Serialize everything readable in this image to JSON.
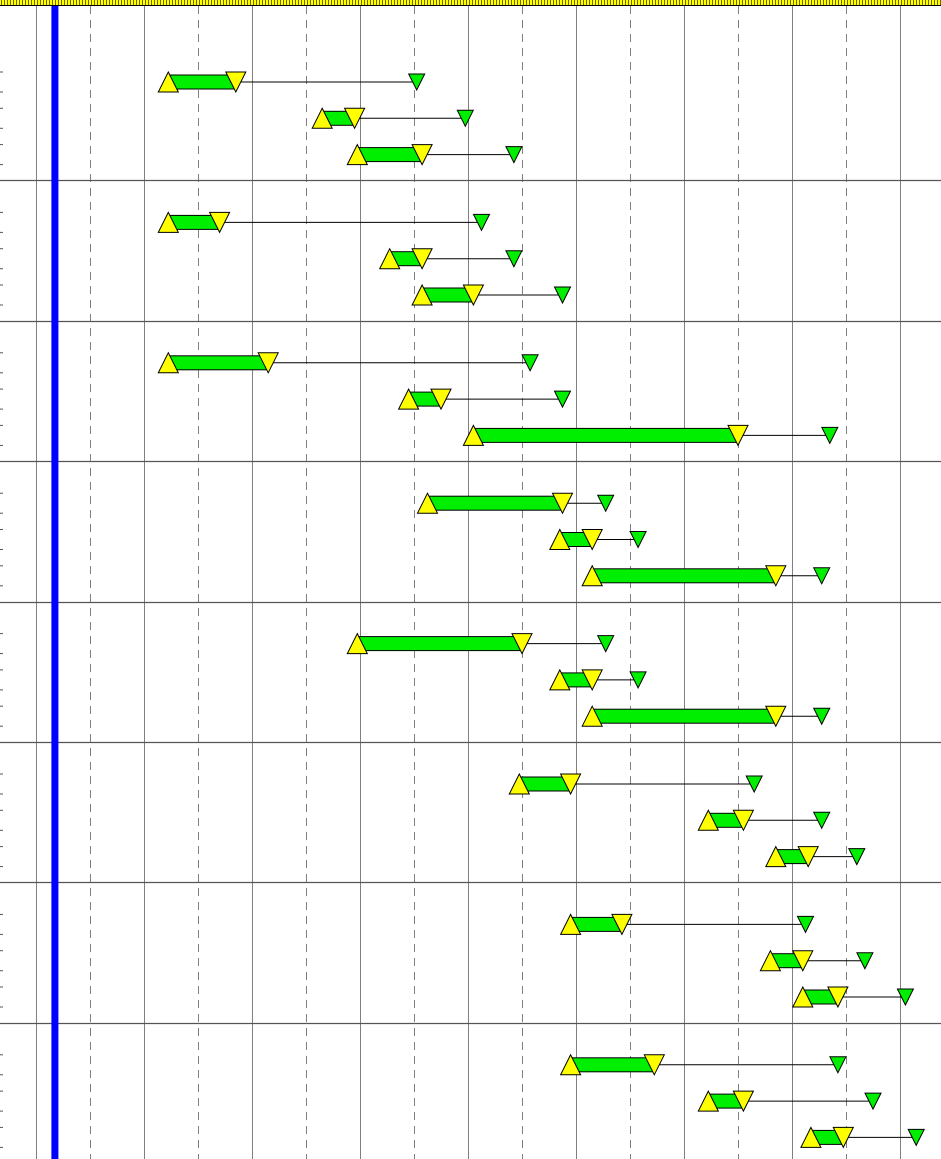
{
  "colors": {
    "background": "#ffffff",
    "header_fill": "#ffff00",
    "header_hatch": "#6b6b00",
    "today_line": "#0000ff",
    "bar_fill": "#00ee00",
    "start_marker": "#ffff00",
    "finish_marker": "#ffff00",
    "deadline_marker": "#00ee00",
    "marker_stroke": "#000000",
    "grid_major": "#808080",
    "grid_minor": "#808080",
    "group_divider": "#555555"
  },
  "chart_data": {
    "type": "gantt",
    "title": "",
    "xlabel": "",
    "ylabel": "",
    "tick_labels": [],
    "x_unit": "period",
    "xlim": [
      0,
      17.45
    ],
    "grid": true,
    "major_grid_step": 2,
    "minor_grid_step": 1,
    "today_marker": 0.35,
    "groups": [
      {
        "tasks": [
          {
            "start": 2.45,
            "finish": 3.7,
            "deadline": 7.05
          },
          {
            "start": 5.3,
            "finish": 5.9,
            "deadline": 7.95
          },
          {
            "start": 5.95,
            "finish": 7.15,
            "deadline": 8.85
          }
        ]
      },
      {
        "tasks": [
          {
            "start": 2.45,
            "finish": 3.4,
            "deadline": 8.25
          },
          {
            "start": 6.55,
            "finish": 7.15,
            "deadline": 8.85
          },
          {
            "start": 7.15,
            "finish": 8.1,
            "deadline": 9.75
          }
        ]
      },
      {
        "tasks": [
          {
            "start": 2.45,
            "finish": 4.3,
            "deadline": 9.15
          },
          {
            "start": 6.9,
            "finish": 7.5,
            "deadline": 9.75
          },
          {
            "start": 8.1,
            "finish": 13.0,
            "deadline": 14.7
          }
        ]
      },
      {
        "tasks": [
          {
            "start": 7.25,
            "finish": 9.75,
            "deadline": 10.55
          },
          {
            "start": 9.7,
            "finish": 10.3,
            "deadline": 11.15
          },
          {
            "start": 10.3,
            "finish": 13.7,
            "deadline": 14.55
          }
        ]
      },
      {
        "tasks": [
          {
            "start": 5.95,
            "finish": 9.0,
            "deadline": 10.55
          },
          {
            "start": 9.7,
            "finish": 10.3,
            "deadline": 11.15
          },
          {
            "start": 10.3,
            "finish": 13.7,
            "deadline": 14.55
          }
        ]
      },
      {
        "tasks": [
          {
            "start": 8.95,
            "finish": 9.9,
            "deadline": 13.3
          },
          {
            "start": 12.45,
            "finish": 13.1,
            "deadline": 14.55
          },
          {
            "start": 13.7,
            "finish": 14.3,
            "deadline": 15.2
          }
        ]
      },
      {
        "tasks": [
          {
            "start": 9.9,
            "finish": 10.85,
            "deadline": 14.25
          },
          {
            "start": 13.6,
            "finish": 14.2,
            "deadline": 15.35
          },
          {
            "start": 14.2,
            "finish": 14.85,
            "deadline": 16.1
          }
        ]
      },
      {
        "tasks": [
          {
            "start": 9.9,
            "finish": 11.45,
            "deadline": 14.85
          },
          {
            "start": 12.45,
            "finish": 13.1,
            "deadline": 15.5
          },
          {
            "start": 14.35,
            "finish": 14.95,
            "deadline": 16.3
          }
        ]
      }
    ]
  }
}
